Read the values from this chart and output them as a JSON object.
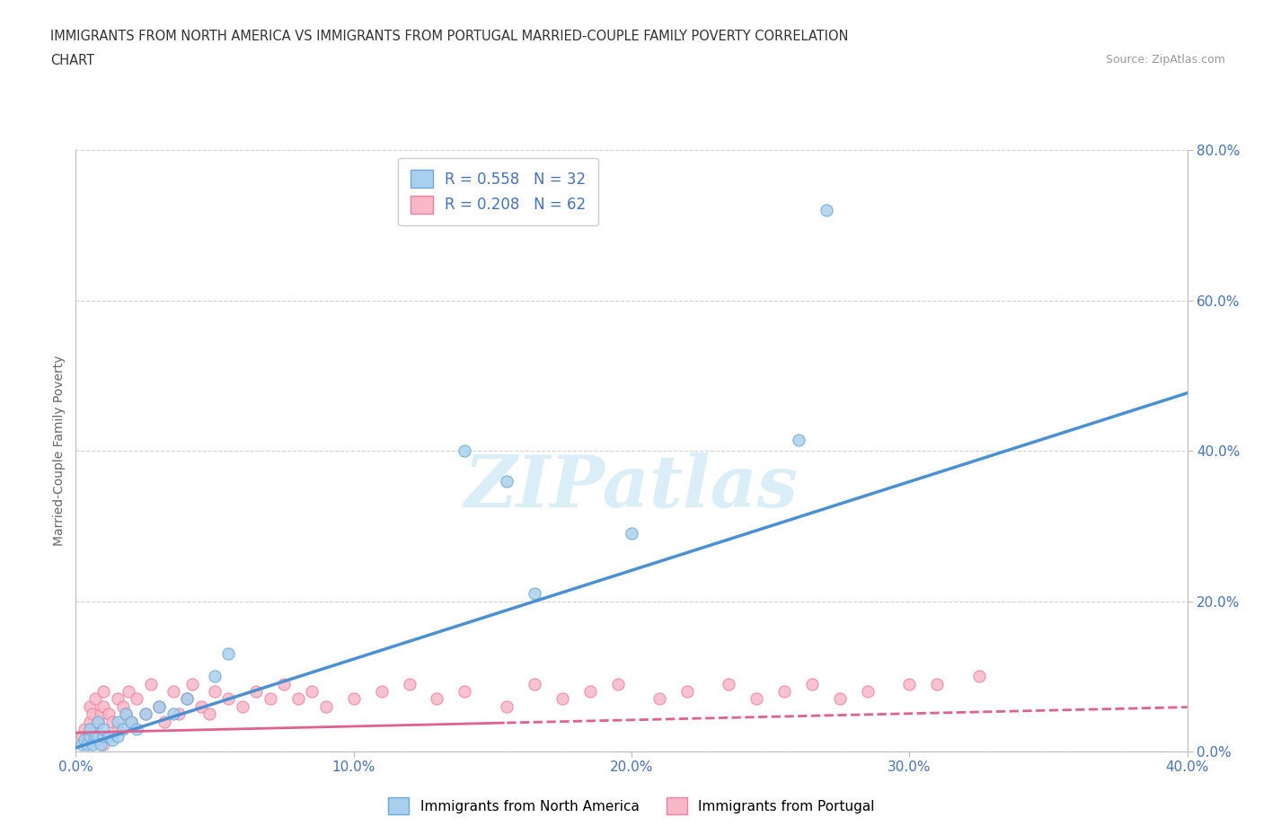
{
  "title_line1": "IMMIGRANTS FROM NORTH AMERICA VS IMMIGRANTS FROM PORTUGAL MARRIED-COUPLE FAMILY POVERTY CORRELATION",
  "title_line2": "CHART",
  "source": "Source: ZipAtlas.com",
  "ylabel": "Married-Couple Family Poverty",
  "xlim": [
    0.0,
    0.4
  ],
  "ylim": [
    0.0,
    0.8
  ],
  "xticks": [
    0.0,
    0.1,
    0.2,
    0.3,
    0.4
  ],
  "yticks": [
    0.0,
    0.2,
    0.4,
    0.6,
    0.8
  ],
  "north_america_R": 0.558,
  "north_america_N": 32,
  "portugal_R": 0.208,
  "portugal_N": 62,
  "north_america_color": "#a8d0ee",
  "portugal_color": "#f9b8c8",
  "north_america_edge_color": "#6aaad4",
  "portugal_edge_color": "#f080a0",
  "north_america_line_color": "#4a90d4",
  "portugal_line_color": "#e06090",
  "tick_color": "#4472c4",
  "background_color": "#ffffff",
  "grid_color": "#cccccc",
  "watermark_color": "#daeef8",
  "na_line_slope": 1.18,
  "na_line_intercept": 0.005,
  "pt_line_slope": 0.085,
  "pt_line_intercept": 0.025,
  "north_america_x": [
    0.002,
    0.003,
    0.004,
    0.005,
    0.005,
    0.006,
    0.007,
    0.008,
    0.008,
    0.009,
    0.01,
    0.01,
    0.012,
    0.013,
    0.015,
    0.015,
    0.017,
    0.018,
    0.02,
    0.022,
    0.025,
    0.03,
    0.035,
    0.04,
    0.05,
    0.055,
    0.14,
    0.155,
    0.165,
    0.2,
    0.26,
    0.27
  ],
  "north_america_y": [
    0.01,
    0.015,
    0.01,
    0.02,
    0.03,
    0.01,
    0.02,
    0.02,
    0.04,
    0.01,
    0.02,
    0.03,
    0.02,
    0.015,
    0.02,
    0.04,
    0.03,
    0.05,
    0.04,
    0.03,
    0.05,
    0.06,
    0.05,
    0.07,
    0.1,
    0.13,
    0.4,
    0.36,
    0.21,
    0.29,
    0.415,
    0.72
  ],
  "portugal_x": [
    0.002,
    0.003,
    0.004,
    0.005,
    0.005,
    0.006,
    0.007,
    0.007,
    0.008,
    0.009,
    0.01,
    0.01,
    0.01,
    0.012,
    0.013,
    0.015,
    0.015,
    0.017,
    0.018,
    0.019,
    0.02,
    0.022,
    0.025,
    0.027,
    0.03,
    0.032,
    0.035,
    0.037,
    0.04,
    0.042,
    0.045,
    0.048,
    0.05,
    0.055,
    0.06,
    0.065,
    0.07,
    0.075,
    0.08,
    0.085,
    0.09,
    0.1,
    0.11,
    0.12,
    0.13,
    0.14,
    0.155,
    0.165,
    0.175,
    0.185,
    0.195,
    0.21,
    0.22,
    0.235,
    0.245,
    0.255,
    0.265,
    0.275,
    0.285,
    0.3,
    0.31,
    0.325
  ],
  "portugal_y": [
    0.02,
    0.03,
    0.02,
    0.04,
    0.06,
    0.05,
    0.03,
    0.07,
    0.04,
    0.05,
    0.06,
    0.08,
    0.01,
    0.05,
    0.04,
    0.07,
    0.03,
    0.06,
    0.05,
    0.08,
    0.04,
    0.07,
    0.05,
    0.09,
    0.06,
    0.04,
    0.08,
    0.05,
    0.07,
    0.09,
    0.06,
    0.05,
    0.08,
    0.07,
    0.06,
    0.08,
    0.07,
    0.09,
    0.07,
    0.08,
    0.06,
    0.07,
    0.08,
    0.09,
    0.07,
    0.08,
    0.06,
    0.09,
    0.07,
    0.08,
    0.09,
    0.07,
    0.08,
    0.09,
    0.07,
    0.08,
    0.09,
    0.07,
    0.08,
    0.09,
    0.09,
    0.1
  ]
}
